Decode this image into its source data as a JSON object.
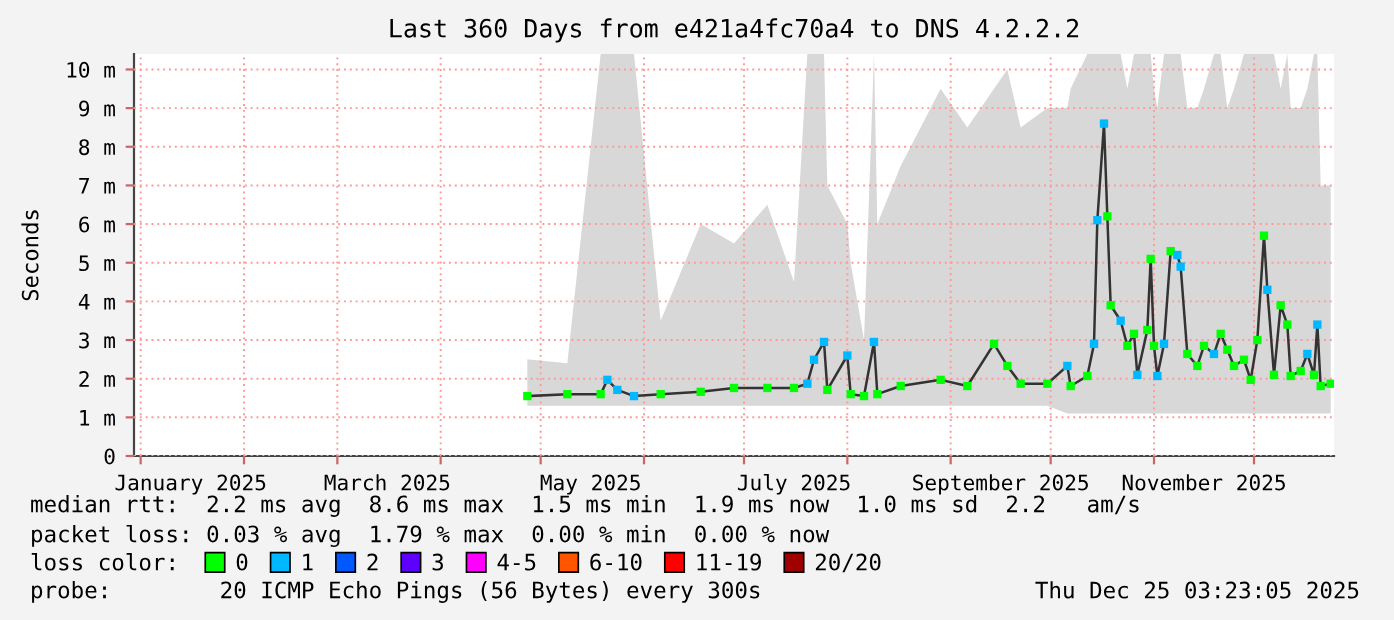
{
  "chart_data": {
    "type": "line",
    "title": "Last 360 Days from e421a4fc70a4 to DNS 4.2.2.2",
    "ylabel": "Seconds",
    "legend_title": "loss color:",
    "annotations": [
      "median rtt:  2.2 ms avg  8.6 ms max  1.5 ms min  1.9 ms now  1.0 ms sd  2.2   am/s",
      "packet loss: 0.03 % avg  1.79 % max  0.00 % min  0.00 % now",
      "probe:        20 ICMP Echo Pings (56 Bytes) every 300s",
      "Thu Dec 25 03:23:05 2025"
    ],
    "xlim": [
      "2024-12-30",
      "2025-12-25"
    ],
    "xticks": [
      {
        "value": "2025-01-01",
        "label": null
      },
      {
        "value": "2025-01-16",
        "label": "January 2025"
      },
      {
        "value": "2025-02-01",
        "label": null
      },
      {
        "value": "2025-03-01",
        "label": null
      },
      {
        "value": "2025-03-16",
        "label": "March 2025"
      },
      {
        "value": "2025-04-01",
        "label": null
      },
      {
        "value": "2025-05-01",
        "label": null
      },
      {
        "value": "2025-05-16",
        "label": "May 2025"
      },
      {
        "value": "2025-06-01",
        "label": null
      },
      {
        "value": "2025-07-01",
        "label": null
      },
      {
        "value": "2025-07-16",
        "label": "July 2025"
      },
      {
        "value": "2025-08-01",
        "label": null
      },
      {
        "value": "2025-09-01",
        "label": null
      },
      {
        "value": "2025-09-16",
        "label": "September 2025"
      },
      {
        "value": "2025-10-01",
        "label": null
      },
      {
        "value": "2025-11-01",
        "label": null
      },
      {
        "value": "2025-11-16",
        "label": "November 2025"
      },
      {
        "value": "2025-12-01",
        "label": null
      }
    ],
    "ylim": [
      0,
      10.4
    ],
    "yticks": [
      0,
      {
        "value": 1,
        "label": "1 m"
      },
      {
        "value": 2,
        "label": "2 m"
      },
      {
        "value": 3,
        "label": "3 m"
      },
      {
        "value": 4,
        "label": "4 m"
      },
      {
        "value": 5,
        "label": "5 m"
      },
      {
        "value": 6,
        "label": "6 m"
      },
      {
        "value": 7,
        "label": "7 m"
      },
      {
        "value": 8,
        "label": "8 m"
      },
      {
        "value": 9,
        "label": "9 m"
      },
      {
        "value": 10,
        "label": "10 m"
      }
    ],
    "grid": true,
    "legend": "bottom",
    "marker": "square",
    "series": [
      {
        "color": "#333333",
        "marker": "none",
        "x": [
          "2025-04-27",
          "2025-05-09",
          "2025-05-19",
          "2025-05-21",
          "2025-05-24",
          "2025-05-29",
          "2025-06-06",
          "2025-06-18",
          "2025-06-28",
          "2025-07-08",
          "2025-07-16",
          "2025-07-20",
          "2025-07-22",
          "2025-07-25",
          "2025-07-26",
          "2025-08-01",
          "2025-08-02",
          "2025-08-06",
          "2025-08-09",
          "2025-08-10",
          "2025-08-17",
          "2025-08-29",
          "2025-09-06",
          "2025-09-14",
          "2025-09-18",
          "2025-09-22",
          "2025-09-30",
          "2025-10-06",
          "2025-10-07",
          "2025-10-12",
          "2025-10-14",
          "2025-10-15",
          "2025-10-17",
          "2025-10-18",
          "2025-10-19",
          "2025-10-22",
          "2025-10-24",
          "2025-10-26",
          "2025-10-27",
          "2025-10-30",
          "2025-10-31",
          "2025-11-01",
          "2025-11-02",
          "2025-11-04",
          "2025-11-06",
          "2025-11-08",
          "2025-11-09",
          "2025-11-11",
          "2025-11-14",
          "2025-11-16",
          "2025-11-19",
          "2025-11-21",
          "2025-11-23",
          "2025-11-25",
          "2025-11-28",
          "2025-11-30",
          "2025-12-02",
          "2025-12-04",
          "2025-12-05",
          "2025-12-07",
          "2025-12-09",
          "2025-12-11",
          "2025-12-12",
          "2025-12-15",
          "2025-12-17",
          "2025-12-19",
          "2025-12-20",
          "2025-12-21",
          "2025-12-24"
        ],
        "values": [
          1.55,
          1.6,
          1.6,
          1.97,
          1.71,
          1.55,
          1.6,
          1.66,
          1.76,
          1.76,
          1.76,
          1.87,
          2.49,
          2.95,
          1.71,
          2.6,
          1.6,
          1.55,
          2.95,
          1.6,
          1.81,
          1.97,
          1.81,
          2.9,
          2.33,
          1.87,
          1.87,
          2.33,
          1.81,
          2.07,
          2.9,
          6.1,
          8.6,
          6.2,
          3.9,
          3.5,
          2.85,
          3.16,
          2.1,
          3.26,
          5.1,
          2.85,
          2.07,
          2.9,
          5.3,
          5.2,
          4.9,
          2.64,
          2.33,
          2.85,
          2.64,
          3.16,
          2.75,
          2.33,
          2.49,
          1.97,
          3.0,
          5.7,
          4.3,
          2.1,
          3.9,
          3.4,
          2.07,
          2.2,
          2.64,
          2.1,
          3.4,
          1.81,
          1.87
        ],
        "lower": [
          1.3,
          1.3,
          1.3,
          1.3,
          1.3,
          1.3,
          1.3,
          1.3,
          1.3,
          1.3,
          1.3,
          1.3,
          1.3,
          1.3,
          1.3,
          1.3,
          1.3,
          1.3,
          1.3,
          1.3,
          1.3,
          1.3,
          1.3,
          1.3,
          1.3,
          1.3,
          1.3,
          1.1,
          1.1,
          1.1,
          1.1,
          1.1,
          1.1,
          1.1,
          1.1,
          1.1,
          1.1,
          1.1,
          1.1,
          1.1,
          1.1,
          1.1,
          1.1,
          1.1,
          1.1,
          1.1,
          1.1,
          1.1,
          1.1,
          1.1,
          1.1,
          1.1,
          1.1,
          1.1,
          1.1,
          1.1,
          1.1,
          1.1,
          1.1,
          1.1,
          1.1,
          1.1,
          1.1,
          1.1,
          1.1,
          1.1,
          1.1,
          1.1,
          1.1
        ],
        "upper": [
          2.5,
          2.4,
          10.4,
          10.4,
          10.4,
          10.4,
          3.5,
          6.0,
          5.5,
          6.5,
          4.5,
          10.4,
          10.4,
          10.4,
          7.0,
          6.0,
          5.0,
          3.0,
          10.4,
          6.0,
          7.5,
          9.5,
          8.5,
          9.5,
          10.0,
          8.5,
          9.0,
          9.0,
          9.5,
          10.4,
          10.4,
          10.4,
          10.4,
          10.4,
          10.4,
          10.4,
          9.5,
          10.4,
          10.4,
          10.4,
          10.4,
          9.5,
          9.0,
          10.4,
          10.4,
          10.4,
          10.4,
          9.0,
          9.0,
          9.5,
          10.4,
          10.4,
          9.0,
          9.5,
          10.4,
          10.4,
          10.4,
          10.4,
          10.4,
          10.4,
          9.5,
          10.4,
          9.0,
          9.0,
          9.5,
          10.4,
          10.4,
          7.0,
          7.0
        ]
      },
      {
        "type": "scatter",
        "name": "0",
        "color": "#00ff00",
        "x": [
          "2025-04-27",
          "2025-05-09",
          "2025-05-19",
          "2025-06-06",
          "2025-06-18",
          "2025-06-28",
          "2025-07-08",
          "2025-07-16",
          "2025-07-26",
          "2025-08-02",
          "2025-08-06",
          "2025-08-10",
          "2025-08-17",
          "2025-08-29",
          "2025-09-06",
          "2025-09-14",
          "2025-09-18",
          "2025-09-22",
          "2025-09-30",
          "2025-10-07",
          "2025-10-12",
          "2025-10-18",
          "2025-10-19",
          "2025-10-24",
          "2025-10-26",
          "2025-10-30",
          "2025-10-31",
          "2025-11-01",
          "2025-11-06",
          "2025-11-11",
          "2025-11-14",
          "2025-11-16",
          "2025-11-21",
          "2025-11-23",
          "2025-11-25",
          "2025-11-28",
          "2025-11-30",
          "2025-12-02",
          "2025-12-04",
          "2025-12-07",
          "2025-12-09",
          "2025-12-11",
          "2025-12-12",
          "2025-12-15",
          "2025-12-19",
          "2025-12-21",
          "2025-12-24"
        ],
        "values": [
          1.55,
          1.6,
          1.6,
          1.6,
          1.66,
          1.76,
          1.76,
          1.76,
          1.71,
          1.6,
          1.55,
          1.6,
          1.81,
          1.97,
          1.81,
          2.9,
          2.33,
          1.87,
          1.87,
          1.81,
          2.07,
          6.2,
          3.9,
          2.85,
          3.16,
          3.26,
          5.1,
          2.85,
          5.3,
          2.64,
          2.33,
          2.85,
          3.16,
          2.75,
          2.33,
          2.49,
          1.97,
          3.0,
          5.7,
          2.1,
          3.9,
          3.4,
          2.07,
          2.2,
          2.1,
          1.81,
          1.87
        ]
      },
      {
        "type": "scatter",
        "name": "1",
        "color": "#00b8ff",
        "x": [
          "2025-05-21",
          "2025-05-24",
          "2025-05-29",
          "2025-07-20",
          "2025-07-22",
          "2025-07-25",
          "2025-08-01",
          "2025-08-09",
          "2025-10-06",
          "2025-10-14",
          "2025-10-15",
          "2025-10-17",
          "2025-10-22",
          "2025-10-27",
          "2025-11-02",
          "2025-11-04",
          "2025-11-08",
          "2025-11-09",
          "2025-11-19",
          "2025-12-05",
          "2025-12-17",
          "2025-12-20"
        ],
        "values": [
          1.97,
          1.71,
          1.55,
          1.87,
          2.49,
          2.95,
          2.6,
          2.95,
          2.33,
          2.9,
          6.1,
          8.6,
          3.5,
          2.1,
          2.07,
          2.9,
          5.2,
          4.9,
          2.64,
          4.3,
          2.64,
          3.4
        ]
      },
      {
        "type": "scatter",
        "name": "2",
        "color": "#0059ff"
      },
      {
        "type": "scatter",
        "name": "3",
        "color": "#5e00ff"
      },
      {
        "type": "scatter",
        "name": "4-5",
        "color": "#ff00fe"
      },
      {
        "type": "scatter",
        "name": "6-10",
        "color": "#ff5500"
      },
      {
        "type": "scatter",
        "name": "11-19",
        "color": "#ff0000"
      },
      {
        "type": "scatter",
        "name": "20/20",
        "color": "#a10000"
      }
    ]
  }
}
